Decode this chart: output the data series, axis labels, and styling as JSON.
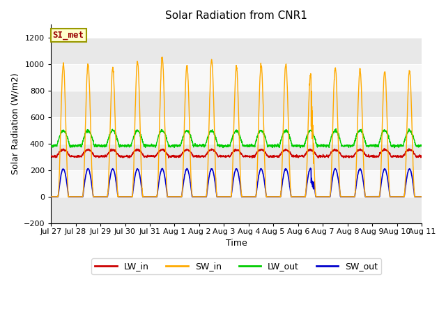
{
  "title": "Solar Radiation from CNR1",
  "xlabel": "Time",
  "ylabel": "Solar Radiation (W/m2)",
  "ylim": [
    -200,
    1300
  ],
  "yticks": [
    -200,
    0,
    200,
    400,
    600,
    800,
    1000,
    1200
  ],
  "xtick_labels": [
    "Jul 27",
    "Jul 28",
    "Jul 29",
    "Jul 30",
    "Jul 31",
    "Aug 1",
    "Aug 2",
    "Aug 3",
    "Aug 4",
    "Aug 5",
    "Aug 6",
    "Aug 7",
    "Aug 8",
    "Aug 9",
    "Aug 10",
    "Aug 11"
  ],
  "colors": {
    "LW_in": "#cc0000",
    "SW_in": "#ffaa00",
    "LW_out": "#00cc00",
    "SW_out": "#0000cc"
  },
  "legend_label": "SI_met",
  "legend_box_facecolor": "#ffffcc",
  "legend_box_edgecolor": "#999900",
  "bg_color": "#ffffff",
  "plot_bg_color": "#ffffff",
  "band_colors": [
    "#e8e8e8",
    "#f8f8f8"
  ],
  "grid_color": "#cccccc",
  "n_days": 15,
  "hours_per_day": 24,
  "pts_per_hour": 6,
  "lw_in_base": 310,
  "sw_in_peak": 1000,
  "lw_out_base": 390,
  "lw_out_amplitude": 110,
  "sw_out_peak": 210,
  "figsize": [
    6.4,
    4.8
  ],
  "dpi": 100
}
